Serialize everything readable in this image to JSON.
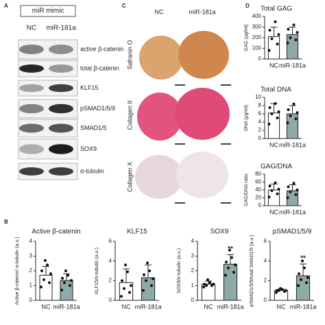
{
  "panels": [
    "A",
    "B",
    "C",
    "D"
  ],
  "blots": {
    "header": "miR mimic",
    "lanes": [
      "NC",
      "miR-181a"
    ],
    "rows": [
      "active β-catenin",
      "total β-catenin",
      "KLF15",
      "pSMAD1/5/9",
      "SMAD1/5",
      "SOX9",
      "α-tubulin"
    ]
  },
  "histology": {
    "columns": [
      "NC",
      "miR-181a"
    ],
    "rows": [
      "Safranin O",
      "Collagen II",
      "Collagen X"
    ]
  },
  "chart_data": [
    {
      "type": "bar",
      "title": "Active β-catenin",
      "ylabel": "Active β-catenin/ α-tubulin (a.u.)",
      "categories": [
        "NC",
        "miR-181a"
      ],
      "values": [
        1.7,
        1.35
      ],
      "errors": [
        0.6,
        0.45
      ],
      "colors": [
        "#ffffff",
        "#8fa8a8"
      ],
      "points": [
        [
          0.9,
          1.2,
          1.4,
          1.8,
          2.0,
          2.4,
          2.7
        ],
        [
          0.7,
          1.0,
          1.2,
          1.35,
          1.5,
          1.7,
          2.0
        ]
      ],
      "ylim": [
        0,
        4
      ],
      "yticks": [
        0,
        1,
        2,
        3,
        4
      ]
    },
    {
      "type": "bar",
      "title": "KLF15",
      "ylabel": "KLF15/α-tubulin (a.u.)",
      "categories": [
        "NC",
        "miR-181a"
      ],
      "values": [
        1.8,
        2.3
      ],
      "errors": [
        1.4,
        1.3
      ],
      "colors": [
        "#ffffff",
        "#8fa8a8"
      ],
      "points": [
        [
          0.4,
          0.8,
          1.2,
          1.5,
          2.0,
          2.9,
          3.6
        ],
        [
          1.0,
          1.5,
          2.0,
          2.2,
          2.6,
          3.0,
          3.8
        ]
      ],
      "ylim": [
        0,
        6
      ],
      "yticks": [
        0,
        2,
        4,
        6
      ]
    },
    {
      "type": "bar",
      "title": "SOX9",
      "ylabel": "SOX9/α-tubulin (a.u.)",
      "categories": [
        "NC",
        "miR-181a"
      ],
      "values": [
        1.1,
        2.45
      ],
      "errors": [
        0.2,
        0.65
      ],
      "colors": [
        "#ffffff",
        "#8fa8a8"
      ],
      "points": [
        [
          0.9,
          1.0,
          1.0,
          1.1,
          1.1,
          1.2,
          1.4
        ],
        [
          1.7,
          1.9,
          2.2,
          2.4,
          2.6,
          2.9,
          3.4
        ]
      ],
      "significance": [
        null,
        "**"
      ],
      "ylim": [
        0,
        4
      ],
      "yticks": [
        0,
        1,
        2,
        3,
        4
      ]
    },
    {
      "type": "bar",
      "title": "pSMAD1/5/9",
      "ylabel": "pSMAD1/5/9/total SMAD1/5 (a.u.)",
      "categories": [
        "NC",
        "miR-181a"
      ],
      "values": [
        1.0,
        2.5
      ],
      "errors": [
        0.15,
        1.2
      ],
      "colors": [
        "#ffffff",
        "#8fa8a8"
      ],
      "points": [
        [
          0.8,
          0.9,
          1.0,
          1.0,
          1.0,
          1.1,
          1.2
        ],
        [
          1.5,
          1.8,
          2.1,
          2.3,
          2.7,
          3.3,
          4.0
        ]
      ],
      "significance": [
        null,
        "**"
      ],
      "ylim": [
        0,
        6
      ],
      "yticks": [
        0,
        2,
        4,
        6
      ]
    },
    {
      "type": "bar",
      "title": "Total GAG",
      "ylabel": "GAG (μg/ml)",
      "categories": [
        "NC",
        "miR-181a"
      ],
      "values": [
        210,
        230
      ],
      "errors": [
        90,
        70
      ],
      "colors": [
        "#ffffff",
        "#8fa8a8"
      ],
      "points": [
        [
          80,
          140,
          190,
          230,
          270,
          350
        ],
        [
          150,
          180,
          200,
          250,
          280,
          320
        ]
      ],
      "ylim": [
        0,
        400
      ],
      "yticks": [
        0,
        100,
        200,
        300,
        400
      ]
    },
    {
      "type": "bar",
      "title": "Total DNA",
      "ylabel": "DNA (μg/ml)",
      "categories": [
        "NC",
        "miR-181a"
      ],
      "values": [
        6.2,
        6.0
      ],
      "errors": [
        2.3,
        2.0
      ],
      "colors": [
        "#ffffff",
        "#8fa8a8"
      ],
      "points": [
        [
          3.5,
          5,
          6,
          6.5,
          7.5,
          8.5
        ],
        [
          3.8,
          4.8,
          5.5,
          6.3,
          7,
          8.4
        ]
      ],
      "ylim": [
        0,
        10
      ],
      "yticks": [
        0,
        2,
        4,
        6,
        8,
        10
      ]
    },
    {
      "type": "bar",
      "title": "GAG/DNA",
      "ylabel": "GAG/DNA ratio",
      "categories": [
        "NC",
        "miR-181a"
      ],
      "values": [
        40,
        38
      ],
      "errors": [
        15,
        15
      ],
      "colors": [
        "#ffffff",
        "#8fa8a8"
      ],
      "points": [
        [
          22,
          30,
          38,
          42,
          50,
          58
        ],
        [
          20,
          28,
          35,
          40,
          48,
          57
        ]
      ],
      "ylim": [
        0,
        80
      ],
      "yticks": [
        0,
        20,
        40,
        60,
        80
      ]
    }
  ]
}
